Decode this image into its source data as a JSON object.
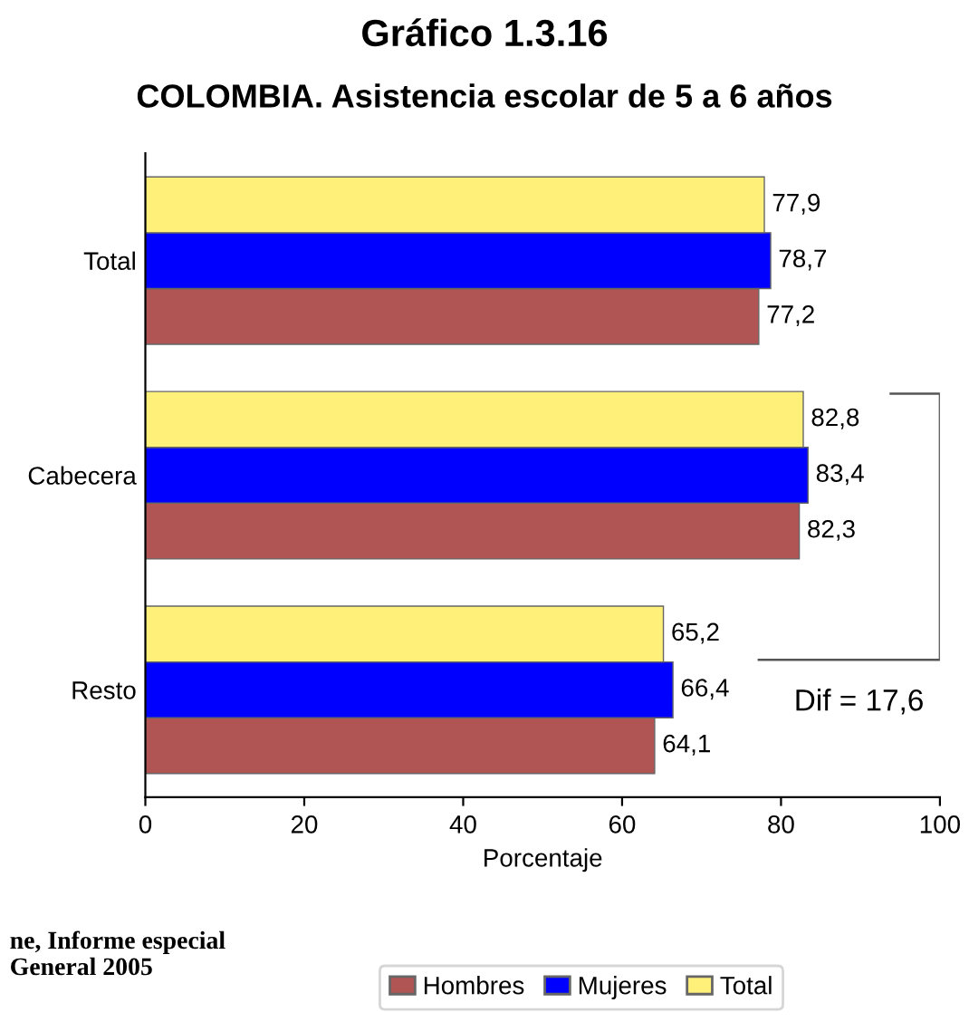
{
  "chart_data": {
    "type": "bar",
    "orientation": "horizontal",
    "title": "Gráfico 1.3.16",
    "subtitle": "COLOMBIA. Asistencia escolar de 5 a 6 años",
    "xlabel": "Porcentaje",
    "categories": [
      "Total",
      "Cabecera",
      "Resto"
    ],
    "series": [
      {
        "name": "Hombres",
        "color": "#b05454",
        "values": [
          77.2,
          82.3,
          64.1
        ],
        "value_labels": [
          "77,2",
          "82,3",
          "64,1"
        ]
      },
      {
        "name": "Mujeres",
        "color": "#0000ff",
        "values": [
          78.7,
          83.4,
          66.4
        ],
        "value_labels": [
          "78,7",
          "83,4",
          "66,4"
        ]
      },
      {
        "name": "Total",
        "color": "#fff07a",
        "values": [
          77.9,
          82.8,
          65.2
        ],
        "value_labels": [
          "77,9",
          "82,8",
          "65,2"
        ]
      }
    ],
    "xlim": [
      0,
      100
    ],
    "xticks": [
      0,
      20,
      40,
      60,
      80,
      100
    ],
    "grid": false,
    "legend": "bottom",
    "annotations": [
      "Dif = 17,6",
      "ne, Informe especial\nGeneral 2005"
    ]
  }
}
